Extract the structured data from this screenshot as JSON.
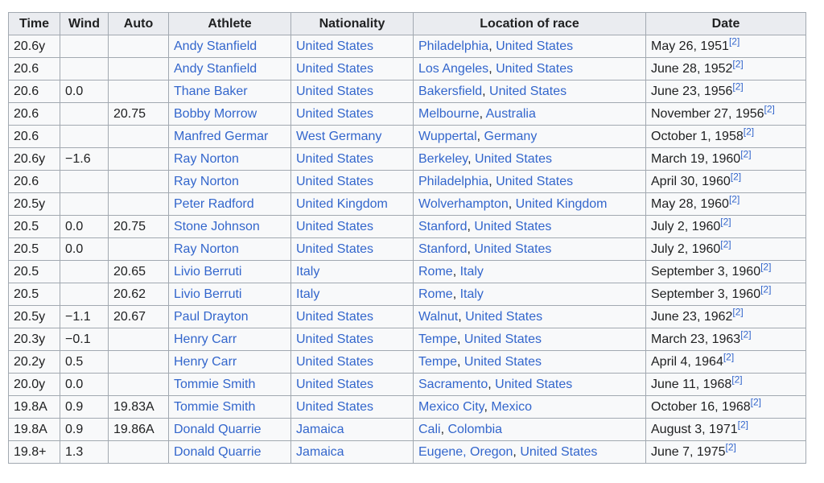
{
  "table": {
    "headers": [
      "Time",
      "Wind",
      "Auto",
      "Athlete",
      "Nationality",
      "Location of race",
      "Date"
    ],
    "rows": [
      {
        "time": "20.6y",
        "wind": "",
        "auto": "",
        "athlete": "Andy Stanfield",
        "nationality": "United States",
        "city": "Philadelphia",
        "country": "United States",
        "date": "May 26, 1951",
        "ref": "[2]"
      },
      {
        "time": "20.6",
        "wind": "",
        "auto": "",
        "athlete": "Andy Stanfield",
        "nationality": "United States",
        "city": "Los Angeles",
        "country": "United States",
        "date": "June 28, 1952",
        "ref": "[2]"
      },
      {
        "time": "20.6",
        "wind": "0.0",
        "auto": "",
        "athlete": "Thane Baker",
        "nationality": "United States",
        "city": "Bakersfield",
        "country": "United States",
        "date": "June 23, 1956",
        "ref": "[2]"
      },
      {
        "time": "20.6",
        "wind": "",
        "auto": "20.75",
        "athlete": "Bobby Morrow",
        "nationality": "United States",
        "city": "Melbourne",
        "country": "Australia",
        "date": "November 27, 1956",
        "ref": "[2]"
      },
      {
        "time": "20.6",
        "wind": "",
        "auto": "",
        "athlete": "Manfred Germar",
        "nationality": "West Germany",
        "city": "Wuppertal",
        "country": "Germany",
        "date": "October 1, 1958",
        "ref": "[2]"
      },
      {
        "time": "20.6y",
        "wind": "−1.6",
        "auto": "",
        "athlete": "Ray Norton",
        "nationality": "United States",
        "city": "Berkeley",
        "country": "United States",
        "date": "March 19, 1960",
        "ref": "[2]"
      },
      {
        "time": "20.6",
        "wind": "",
        "auto": "",
        "athlete": "Ray Norton",
        "nationality": "United States",
        "city": "Philadelphia",
        "country": "United States",
        "date": "April 30, 1960",
        "ref": "[2]"
      },
      {
        "time": "20.5y",
        "wind": "",
        "auto": "",
        "athlete": "Peter Radford",
        "nationality": "United Kingdom",
        "city": "Wolverhampton",
        "country": "United Kingdom",
        "date": "May 28, 1960",
        "ref": "[2]"
      },
      {
        "time": "20.5",
        "wind": "0.0",
        "auto": "20.75",
        "athlete": "Stone Johnson",
        "nationality": "United States",
        "city": "Stanford",
        "country": "United States",
        "date": "July 2, 1960",
        "ref": "[2]"
      },
      {
        "time": "20.5",
        "wind": "0.0",
        "auto": "",
        "athlete": "Ray Norton",
        "nationality": "United States",
        "city": "Stanford",
        "country": "United States",
        "date": "July 2, 1960",
        "ref": "[2]"
      },
      {
        "time": "20.5",
        "wind": "",
        "auto": "20.65",
        "athlete": "Livio Berruti",
        "nationality": "Italy",
        "city": "Rome",
        "country": "Italy",
        "date": "September 3, 1960",
        "ref": "[2]"
      },
      {
        "time": "20.5",
        "wind": "",
        "auto": "20.62",
        "athlete": "Livio Berruti",
        "nationality": "Italy",
        "city": "Rome",
        "country": "Italy",
        "date": "September 3, 1960",
        "ref": "[2]"
      },
      {
        "time": "20.5y",
        "wind": "−1.1",
        "auto": "20.67",
        "athlete": "Paul Drayton",
        "nationality": "United States",
        "city": "Walnut",
        "country": "United States",
        "date": "June 23, 1962",
        "ref": "[2]"
      },
      {
        "time": "20.3y",
        "wind": "−0.1",
        "auto": "",
        "athlete": "Henry Carr",
        "nationality": "United States",
        "city": "Tempe",
        "country": "United States",
        "date": "March 23, 1963",
        "ref": "[2]"
      },
      {
        "time": "20.2y",
        "wind": "0.5",
        "auto": "",
        "athlete": "Henry Carr",
        "nationality": "United States",
        "city": "Tempe",
        "country": "United States",
        "date": "April 4, 1964",
        "ref": "[2]"
      },
      {
        "time": "20.0y",
        "wind": "0.0",
        "auto": "",
        "athlete": "Tommie Smith",
        "nationality": "United States",
        "city": "Sacramento",
        "country": "United States",
        "date": "June 11, 1968",
        "ref": "[2]"
      },
      {
        "time": "19.8A",
        "wind": "0.9",
        "auto": "19.83A",
        "athlete": "Tommie Smith",
        "nationality": "United States",
        "city": "Mexico City",
        "country": "Mexico",
        "date": "October 16, 1968",
        "ref": "[2]"
      },
      {
        "time": "19.8A",
        "wind": "0.9",
        "auto": "19.86A",
        "athlete": "Donald Quarrie",
        "nationality": "Jamaica",
        "city": "Cali",
        "country": "Colombia",
        "date": "August 3, 1971",
        "ref": "[2]"
      },
      {
        "time": "19.8+",
        "wind": "1.3",
        "auto": "",
        "athlete": "Donald Quarrie",
        "nationality": "Jamaica",
        "city": "Eugene, Oregon",
        "country": "United States",
        "date": "June 7, 1975",
        "ref": "[2]"
      }
    ]
  }
}
